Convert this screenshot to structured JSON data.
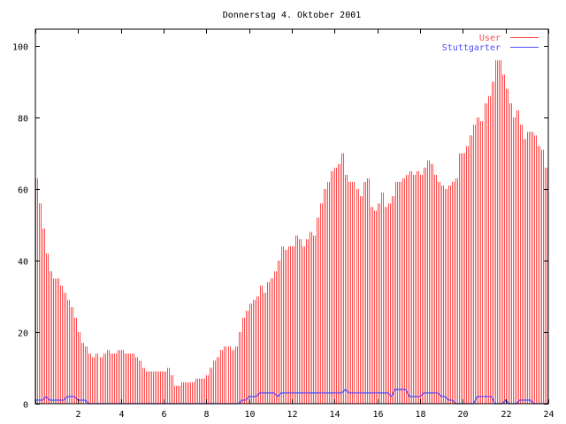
{
  "chart_data": {
    "type": "bar",
    "title": "Donnerstag 4. Oktober 2001",
    "xlabel": "",
    "ylabel": "",
    "xlim": [
      0,
      24
    ],
    "ylim": [
      0,
      104.7
    ],
    "x_step_hours": 0.16667,
    "x_ticks": [
      0,
      2,
      4,
      6,
      8,
      10,
      12,
      14,
      16,
      18,
      20,
      22,
      24
    ],
    "x_tick_labels": [
      "",
      "2",
      "4",
      "6",
      "8",
      "10",
      "12",
      "14",
      "16",
      "18",
      "20",
      "22",
      "24"
    ],
    "y_ticks": [
      0,
      20,
      40,
      60,
      80,
      100
    ],
    "y_tick_labels": [
      "0",
      "20",
      "40",
      "60",
      "80",
      "100"
    ],
    "grid": false,
    "legend_position": "top-right",
    "series": [
      {
        "name": "User",
        "style": "impulses",
        "color": "#ff4d4d",
        "values": [
          63,
          56,
          49,
          42,
          37,
          35,
          35,
          33,
          31,
          29,
          27,
          24,
          20,
          17,
          16,
          14,
          13,
          14,
          13,
          14,
          15,
          14,
          14,
          15,
          15,
          14,
          14,
          14,
          13,
          12,
          10,
          9,
          9,
          9,
          9,
          9,
          9,
          10,
          8,
          5,
          5,
          6,
          6,
          6,
          6,
          7,
          7,
          7,
          8,
          10,
          12,
          13,
          15,
          16,
          16,
          15,
          16,
          20,
          24,
          26,
          28,
          29,
          30,
          33,
          31,
          34,
          35,
          37,
          40,
          44,
          43,
          44,
          44,
          47,
          46,
          44,
          46,
          48,
          47,
          52,
          56,
          60,
          62,
          65,
          66,
          67,
          70,
          64,
          62,
          62,
          60,
          58,
          62,
          63,
          55,
          54,
          56,
          59,
          55,
          56,
          58,
          62,
          62,
          63,
          64,
          65,
          64,
          65,
          64,
          66,
          68,
          67,
          64,
          62,
          61,
          60,
          61,
          62,
          63,
          70,
          70,
          72,
          75,
          78,
          80,
          79,
          84,
          86,
          90,
          96,
          96,
          92,
          88,
          84,
          80,
          82,
          78,
          74,
          76,
          76,
          75,
          72,
          71,
          66,
          66
        ]
      },
      {
        "name": "Stuttgarter",
        "style": "steps",
        "color": "#4d4dff",
        "values": [
          1,
          1,
          1,
          2,
          1,
          1,
          1,
          1,
          1,
          2,
          2,
          2,
          1,
          1,
          1,
          0,
          0,
          0,
          0,
          0,
          0,
          0,
          0,
          0,
          0,
          0,
          0,
          0,
          0,
          0,
          0,
          0,
          0,
          0,
          0,
          0,
          0,
          0,
          0,
          0,
          0,
          0,
          0,
          0,
          0,
          0,
          0,
          0,
          0,
          0,
          0,
          0,
          0,
          0,
          0,
          0,
          0,
          0,
          1,
          1,
          2,
          2,
          2,
          3,
          3,
          3,
          3,
          3,
          2,
          3,
          3,
          3,
          3,
          3,
          3,
          3,
          3,
          3,
          3,
          3,
          3,
          3,
          3,
          3,
          3,
          3,
          3,
          4,
          3,
          3,
          3,
          3,
          3,
          3,
          3,
          3,
          3,
          3,
          3,
          3,
          2,
          4,
          4,
          4,
          4,
          2,
          2,
          2,
          2,
          3,
          3,
          3,
          3,
          3,
          2,
          2,
          1,
          1,
          0,
          0,
          0,
          0,
          0,
          0,
          2,
          2,
          2,
          2,
          2,
          0,
          0,
          0,
          1,
          0,
          0,
          0,
          1,
          1,
          1,
          1,
          0,
          0,
          0,
          0,
          0
        ]
      }
    ]
  }
}
